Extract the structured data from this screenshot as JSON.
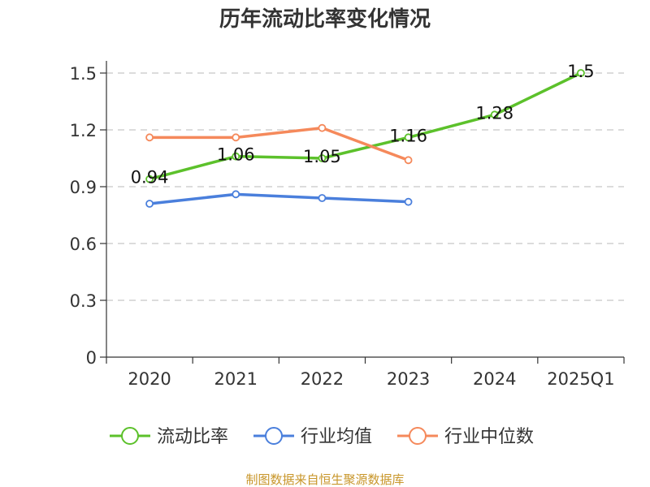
{
  "chart_data": {
    "type": "line",
    "title": "历年流动比率变化情况",
    "categories": [
      "2020",
      "2021",
      "2022",
      "2023",
      "2024",
      "2025Q1"
    ],
    "ylim": [
      0,
      1.5
    ],
    "yticks": [
      "0",
      "0.3",
      "0.6",
      "0.9",
      "1.2",
      "1.5"
    ],
    "grid": true,
    "legend_position": "bottom",
    "series": [
      {
        "name": "流动比率",
        "color": "#5cc12b",
        "values": [
          0.94,
          1.06,
          1.05,
          1.16,
          1.28,
          1.5
        ],
        "labels": [
          "0.94",
          "1.06",
          "1.05",
          "1.16",
          "1.28",
          "1.5"
        ]
      },
      {
        "name": "行业均值",
        "color": "#4a7fdc",
        "values": [
          0.81,
          0.86,
          0.84,
          0.82,
          null,
          null
        ]
      },
      {
        "name": "行业中位数",
        "color": "#f5895b",
        "values": [
          1.16,
          1.16,
          1.21,
          1.04,
          null,
          null
        ]
      }
    ]
  },
  "source_note": "制图数据来自恒生聚源数据库"
}
